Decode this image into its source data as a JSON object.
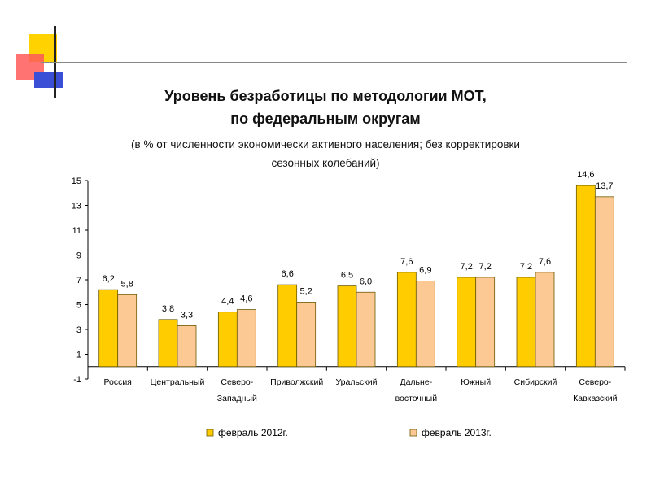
{
  "colors": {
    "series_2012": "#ffcc00",
    "series_2013": "#fcc995",
    "bar_stroke": "#6b5a00",
    "axis": "#000000"
  },
  "chart_data": {
    "type": "bar",
    "title": "Уровень безработицы по методологии МОТ,",
    "title_line2": "по федеральным округам",
    "subtitle_line1": "(в % от численности экономически активного населения; без корректировки",
    "subtitle_line2": "сезонных колебаний)",
    "categories": [
      [
        "Россия"
      ],
      [
        "Центральный"
      ],
      [
        "Северо-",
        "Западный"
      ],
      [
        "Приволжский"
      ],
      [
        "Уральский"
      ],
      [
        "Дальне-",
        "восточный"
      ],
      [
        "Южный"
      ],
      [
        "Сибирский"
      ],
      [
        "Северо-",
        "Кавказский"
      ]
    ],
    "series": [
      {
        "name": "февраль 2012г.",
        "values": [
          6.2,
          3.8,
          4.4,
          6.6,
          6.5,
          7.6,
          7.2,
          7.2,
          14.6
        ],
        "labels": [
          "6,2",
          "3,8",
          "4,4",
          "6,6",
          "6,5",
          "7,6",
          "7,2",
          "7,2",
          "14,6"
        ]
      },
      {
        "name": "февраль 2013г.",
        "values": [
          5.8,
          3.3,
          4.6,
          5.2,
          6.0,
          6.9,
          7.2,
          7.6,
          13.7
        ],
        "labels": [
          "5,8",
          "3,3",
          "4,6",
          "5,2",
          "6,0",
          "6,9",
          "7,2",
          "7,6",
          "13,7"
        ]
      }
    ],
    "ylim": [
      -1,
      15
    ],
    "yticks": [
      -1,
      1,
      3,
      5,
      7,
      9,
      11,
      13,
      15
    ],
    "xlabel": "",
    "ylabel": "",
    "grid": false,
    "legend_position": "bottom"
  }
}
